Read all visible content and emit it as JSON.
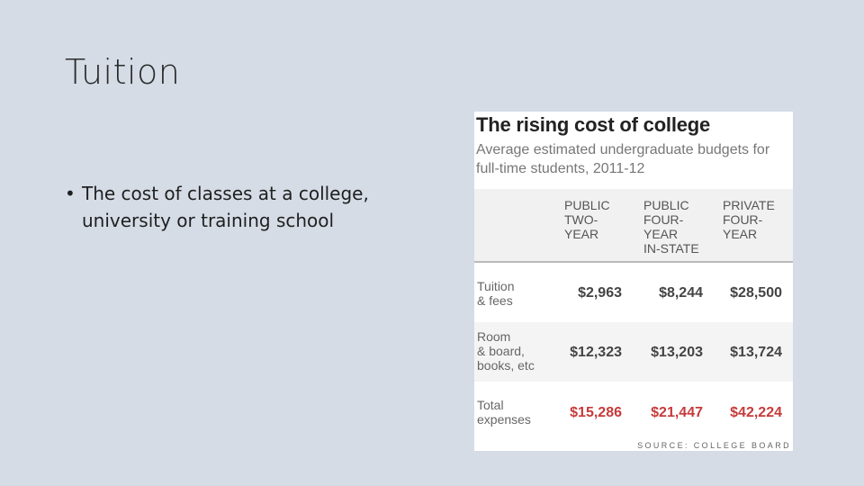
{
  "slide": {
    "title": "Tuition",
    "bullets": [
      {
        "marker": "•",
        "text": "The cost of classes at a college, university or training school"
      }
    ]
  },
  "figure": {
    "title": "The rising cost of college",
    "subtitle": "Average estimated undergraduate budgets for full-time students, 2011-12",
    "columns": [
      "PUBLIC\nTWO-\nYEAR",
      "PUBLIC\nFOUR-\nYEAR\nIN-STATE",
      "PRIVATE\nFOUR-\nYEAR"
    ],
    "rows": [
      {
        "label": "Tuition\n& fees",
        "values": [
          "$2,963",
          "$8,244",
          "$28,500"
        ]
      },
      {
        "label": "Room\n& board,\nbooks, etc",
        "values": [
          "$12,323",
          "$13,203",
          "$13,724"
        ]
      },
      {
        "label": "Total\nexpenses",
        "values": [
          "$15,286",
          "$21,447",
          "$42,224"
        ]
      }
    ],
    "source": "SOURCE: COLLEGE BOARD",
    "colors": {
      "total_highlight": "#c73a3a",
      "header_band": "#f1f1f1",
      "alt_row": "#f4f4f4"
    }
  }
}
